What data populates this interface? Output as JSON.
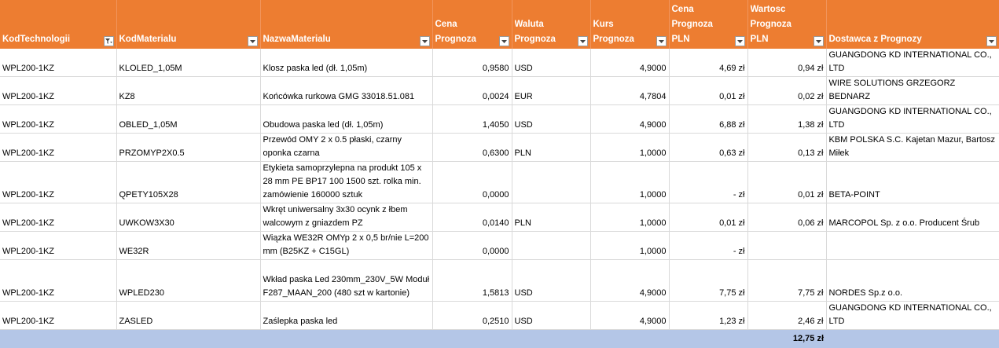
{
  "headers": [
    {
      "label": "KodTechnologii",
      "filter": "filter-active"
    },
    {
      "label": "KodMaterialu",
      "filter": "dropdown"
    },
    {
      "label": "NazwaMaterialu",
      "filter": "dropdown"
    },
    {
      "label": "Cena Prognoza",
      "filter": "dropdown"
    },
    {
      "label": "Waluta\nPrognoza",
      "filter": "dropdown"
    },
    {
      "label": "Kurs Prognoza",
      "filter": "dropdown"
    },
    {
      "label": "Cena Prognoza\nPLN",
      "filter": "dropdown"
    },
    {
      "label": "Wartosc\nPrognoza PLN",
      "filter": "dropdown"
    },
    {
      "label": "Dostawca z Prognozy",
      "filter": "dropdown"
    }
  ],
  "rows": [
    {
      "kod_tech": "WPL200-1KZ",
      "kod_mat": "KLOLED_1,05M",
      "nazwa": "Klosz paska led (dł. 1,05m)",
      "cena": "0,9580",
      "waluta": "USD",
      "kurs": "4,9000",
      "cena_pln_val": "4,69",
      "cena_pln_cur": "zł",
      "wartosc": "0,94 zł",
      "dostawca": "GUANGDONG KD INTERNATIONAL CO., LTD"
    },
    {
      "kod_tech": "WPL200-1KZ",
      "kod_mat": "KZ8",
      "nazwa": "Końcówka rurkowa GMG 33018.51.081",
      "cena": "0,0024",
      "waluta": "EUR",
      "kurs": "4,7804",
      "cena_pln_val": "0,01",
      "cena_pln_cur": "zł",
      "wartosc": "0,02 zł",
      "dostawca": "WIRE SOLUTIONS GRZEGORZ BEDNARZ"
    },
    {
      "kod_tech": "WPL200-1KZ",
      "kod_mat": "OBLED_1,05M",
      "nazwa": "Obudowa paska led (dł. 1,05m)",
      "cena": "1,4050",
      "waluta": "USD",
      "kurs": "4,9000",
      "cena_pln_val": "6,88",
      "cena_pln_cur": "zł",
      "wartosc": "1,38 zł",
      "dostawca": "GUANGDONG KD INTERNATIONAL CO., LTD"
    },
    {
      "kod_tech": "WPL200-1KZ",
      "kod_mat": "PRZOMYP2X0.5",
      "nazwa": "Przewód OMY 2 x 0.5 płaski, czarny oponka czarna",
      "cena": "0,6300",
      "waluta": "PLN",
      "kurs": "1,0000",
      "cena_pln_val": "0,63",
      "cena_pln_cur": "zł",
      "wartosc": "0,13 zł",
      "dostawca": "KBM POLSKA S.C. Kajetan Mazur, Bartosz Miłek"
    },
    {
      "kod_tech": "WPL200-1KZ",
      "kod_mat": "QPETY105X28",
      "nazwa": "Etykieta samoprzylepna na produkt 105 x 28 mm PE BP17 100 1500 szt. rolka min. zamówienie 160000 sztuk",
      "cena": "0,0000",
      "waluta": "",
      "kurs": "1,0000",
      "cena_pln_val": "-",
      "cena_pln_cur": "zł",
      "wartosc": "0,01 zł",
      "dostawca": "BETA-POINT"
    },
    {
      "kod_tech": "WPL200-1KZ",
      "kod_mat": "UWKOW3X30",
      "nazwa": "Wkręt uniwersalny 3x30 ocynk z łbem walcowym z gniazdem PZ",
      "cena": "0,0140",
      "waluta": "PLN",
      "kurs": "1,0000",
      "cena_pln_val": "0,01",
      "cena_pln_cur": "zł",
      "wartosc": "0,06 zł",
      "dostawca": "MARCOPOL Sp. z o.o. Producent Śrub"
    },
    {
      "kod_tech": "WPL200-1KZ",
      "kod_mat": "WE32R",
      "nazwa": "Wiązka WE32R OMYp 2 x 0,5 br/nie L=200 mm  (B25KZ + C15GL)",
      "cena": "0,0000",
      "waluta": "",
      "kurs": "1,0000",
      "cena_pln_val": "-",
      "cena_pln_cur": "zł",
      "wartosc": "",
      "dostawca": ""
    },
    {
      "kod_tech": "WPL200-1KZ",
      "kod_mat": "WPLED230",
      "nazwa": "Wkład paska Led 230mm_230V_5W Moduł F287_MAAN_200 (480 szt w kartonie)",
      "cena": "1,5813",
      "waluta": "USD",
      "kurs": "4,9000",
      "cena_pln_val": "7,75",
      "cena_pln_cur": "zł",
      "wartosc": "7,75 zł",
      "dostawca": "NORDES Sp.z o.o."
    },
    {
      "kod_tech": "WPL200-1KZ",
      "kod_mat": "ZASLED",
      "nazwa": "Zaślepka paska led",
      "cena": "0,2510",
      "waluta": "USD",
      "kurs": "4,9000",
      "cena_pln_val": "1,23",
      "cena_pln_cur": "zł",
      "wartosc": "2,46 zł",
      "dostawca": "GUANGDONG KD INTERNATIONAL CO., LTD"
    }
  ],
  "total": {
    "wartosc": "12,75 zł"
  },
  "colors": {
    "header_bg": "#ed7d31",
    "header_text": "#ffffff",
    "total_bg": "#b4c6e7",
    "grid": "#d9d9d9"
  }
}
